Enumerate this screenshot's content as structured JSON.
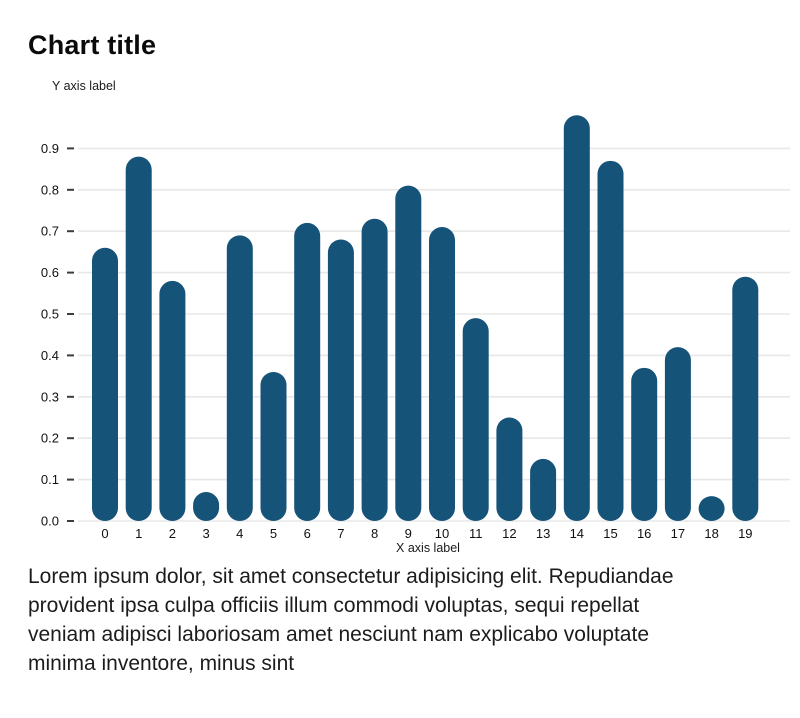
{
  "chart_data": {
    "type": "bar",
    "title": "Chart title",
    "xlabel": "X axis label",
    "ylabel": "Y axis label",
    "categories": [
      "0",
      "1",
      "2",
      "3",
      "4",
      "5",
      "6",
      "7",
      "8",
      "9",
      "10",
      "11",
      "12",
      "13",
      "14",
      "15",
      "16",
      "17",
      "18",
      "19"
    ],
    "values": [
      0.66,
      0.88,
      0.58,
      0.07,
      0.69,
      0.36,
      0.72,
      0.68,
      0.73,
      0.81,
      0.71,
      0.49,
      0.25,
      0.15,
      0.98,
      0.87,
      0.37,
      0.42,
      0.06,
      0.59
    ],
    "ylim": [
      0,
      1.0
    ],
    "yticks": [
      0.0,
      0.1,
      0.2,
      0.3,
      0.4,
      0.5,
      0.6,
      0.7,
      0.8,
      0.9
    ],
    "grid": true,
    "legend": "none",
    "bar_color": "#165378",
    "grid_color": "#e8e8e8",
    "tick_mark_color": "#3c3c3c",
    "label_color": "#111111"
  },
  "paragraph": {
    "lines": [
      "Lorem ipsum dolor, sit amet consectetur adipisicing elit. Repudiandae",
      "provident ipsa culpa officiis illum commodi voluptas, sequi repellat",
      "veniam adipisci laboriosam amet nesciunt nam explicabo voluptate",
      "minima inventore, minus sint"
    ]
  }
}
